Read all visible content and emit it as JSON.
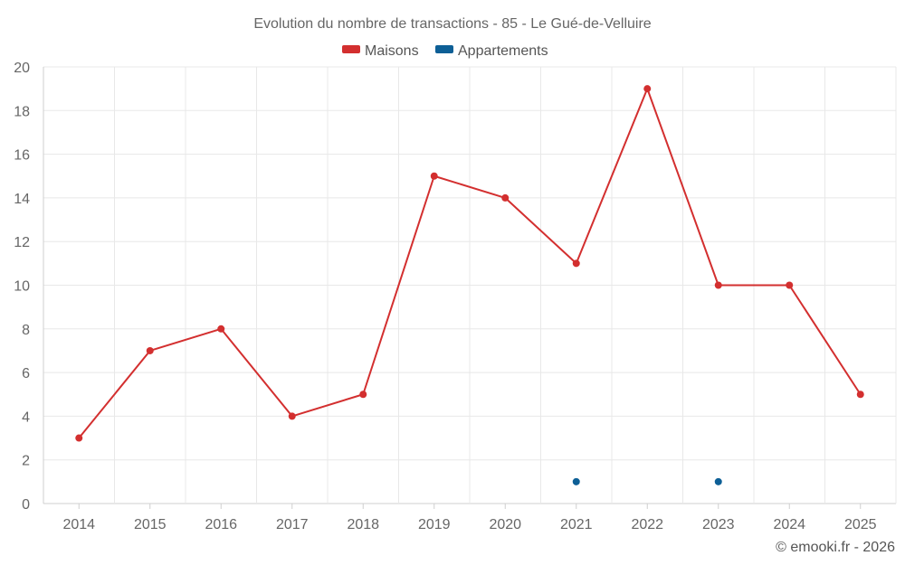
{
  "chart_data": {
    "type": "line",
    "title": "Evolution du nombre de transactions - 85 - Le Gué-de-Velluire",
    "categories": [
      "2014",
      "2015",
      "2016",
      "2017",
      "2018",
      "2019",
      "2020",
      "2021",
      "2022",
      "2023",
      "2024",
      "2025"
    ],
    "series": [
      {
        "name": "Maisons",
        "color": "#d32f2f",
        "values": [
          3,
          7,
          8,
          4,
          5,
          15,
          14,
          11,
          19,
          10,
          10,
          5
        ]
      },
      {
        "name": "Appartements",
        "color": "#0d5f96",
        "values": [
          null,
          null,
          null,
          null,
          null,
          null,
          null,
          1,
          null,
          1,
          null,
          null
        ]
      }
    ],
    "ylim": [
      0,
      20
    ],
    "yticks": [
      "0",
      "2",
      "4",
      "6",
      "8",
      "10",
      "12",
      "14",
      "16",
      "18",
      "20"
    ],
    "xlabel": "",
    "ylabel": "",
    "grid": true,
    "legend_position": "top-center"
  },
  "credit": "© emooki.fr - 2026"
}
